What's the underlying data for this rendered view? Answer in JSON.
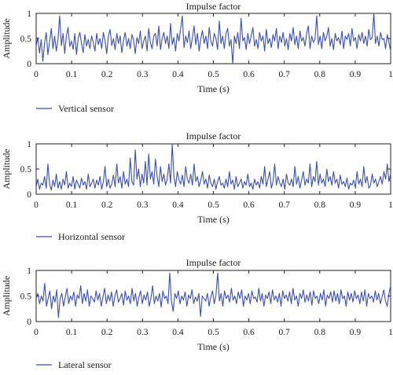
{
  "chart_data": [
    {
      "type": "line",
      "title": "Impulse factor",
      "xlabel": "Time (s)",
      "ylabel": "Amplitude",
      "xlim": [
        0,
        1
      ],
      "ylim": [
        0,
        1
      ],
      "x_ticks": [
        "0",
        "0.1",
        "0.2",
        "0.3",
        "0.4",
        "0.5",
        "0.6",
        "0.7",
        "0.8",
        "0.9",
        "1"
      ],
      "y_ticks": [
        "0",
        "0.5",
        "1"
      ],
      "legend_position": "bottom-left",
      "color": "#3a4fa8",
      "series": [
        {
          "name": "Vertical sensor",
          "x_start": 0,
          "x_end": 1,
          "values": [
            0.35,
            0.52,
            0.21,
            0.48,
            0.05,
            0.4,
            0.62,
            0.18,
            0.44,
            0.7,
            0.3,
            0.55,
            0.25,
            0.48,
            0.95,
            0.36,
            0.6,
            0.2,
            0.55,
            0.72,
            0.34,
            0.45,
            0.28,
            0.6,
            0.18,
            0.5,
            0.62,
            0.4,
            0.22,
            0.58,
            0.35,
            0.48,
            0.3,
            0.55,
            0.42,
            0.25,
            0.6,
            0.38,
            0.5,
            0.3,
            0.62,
            0.45,
            0.2,
            0.55,
            0.68,
            0.36,
            0.5,
            0.28,
            0.6,
            0.4,
            0.55,
            0.22,
            0.46,
            0.62,
            0.35,
            0.5,
            0.3,
            0.58,
            0.48,
            0.2,
            0.52,
            0.4,
            0.65,
            0.3,
            0.45,
            0.55,
            0.25,
            0.7,
            0.42,
            0.3,
            0.55,
            0.6,
            0.35,
            0.75,
            0.28,
            0.5,
            0.62,
            0.4,
            0.55,
            0.3,
            0.8,
            0.38,
            0.52,
            0.25,
            0.6,
            0.45,
            0.7,
            0.95,
            0.32,
            0.55,
            0.42,
            0.65,
            0.3,
            0.52,
            0.75,
            0.38,
            0.6,
            0.25,
            0.5,
            0.66,
            0.4,
            0.55,
            0.3,
            0.72,
            0.45,
            0.35,
            0.6,
            0.5,
            0.28,
            0.85,
            0.4,
            0.55,
            0.3,
            0.6,
            0.7,
            0.35,
            0.48,
            0.0,
            0.55,
            0.4,
            0.62,
            0.3,
            0.9,
            0.45,
            0.52,
            0.28,
            0.6,
            0.4,
            0.55,
            0.72,
            0.35,
            0.48,
            0.3,
            0.62,
            0.45,
            0.55,
            0.25,
            0.68,
            0.4,
            0.5,
            0.32,
            0.58,
            0.45,
            0.7,
            0.3,
            0.55,
            0.42,
            0.62,
            0.35,
            0.5,
            0.28,
            0.6,
            0.45,
            0.72,
            0.38,
            0.55,
            0.3,
            0.65,
            0.45,
            0.52,
            0.35,
            0.6,
            0.75,
            0.3,
            0.55,
            0.42,
            0.5,
            0.95,
            0.38,
            0.55,
            0.3,
            0.62,
            0.45,
            0.55,
            0.72,
            0.35,
            0.5,
            0.28,
            0.6,
            0.45,
            0.52,
            0.38,
            0.65,
            0.3,
            0.55,
            0.48,
            0.6,
            0.35,
            0.7,
            0.45,
            0.52,
            0.3,
            0.58,
            0.45,
            0.62,
            0.4,
            0.55,
            0.35,
            0.68,
            0.48,
            0.52,
            1.0,
            0.4,
            0.55,
            0.35,
            0.62,
            0.48,
            0.5,
            0.3,
            0.58,
            0.42,
            0.25
          ]
        }
      ]
    },
    {
      "type": "line",
      "title": "Impulse factor",
      "xlabel": "Time (s)",
      "ylabel": "Amplitude",
      "xlim": [
        0,
        1
      ],
      "ylim": [
        0,
        1
      ],
      "x_ticks": [
        "0",
        "0.1",
        "0.2",
        "0.3",
        "0.4",
        "0.5",
        "0.6",
        "0.7",
        "0.8",
        "0.9",
        "1"
      ],
      "y_ticks": [
        "0",
        "0.5",
        "1"
      ],
      "legend_position": "bottom-left",
      "color": "#3a4fa8",
      "series": [
        {
          "name": "Horizontal sensor",
          "x_start": 0,
          "x_end": 1,
          "values": [
            0.15,
            0.3,
            0.1,
            0.22,
            0.18,
            0.35,
            0.12,
            0.6,
            0.2,
            0.08,
            0.28,
            0.15,
            0.4,
            0.12,
            0.25,
            0.1,
            0.3,
            0.18,
            0.45,
            0.12,
            0.22,
            0.15,
            0.35,
            0.1,
            0.28,
            0.2,
            0.12,
            0.32,
            0.18,
            0.25,
            0.1,
            0.4,
            0.15,
            0.22,
            0.3,
            0.12,
            0.28,
            0.18,
            0.35,
            0.1,
            0.25,
            0.55,
            0.15,
            0.3,
            0.12,
            0.2,
            0.38,
            0.15,
            0.6,
            0.22,
            0.35,
            0.12,
            0.45,
            0.2,
            0.3,
            0.15,
            0.72,
            0.25,
            0.18,
            0.88,
            0.3,
            0.5,
            0.15,
            0.4,
            0.22,
            0.65,
            0.18,
            0.8,
            0.3,
            0.45,
            0.2,
            0.7,
            0.35,
            0.15,
            0.55,
            0.25,
            0.4,
            0.18,
            0.3,
            0.6,
            0.22,
            1.0,
            0.35,
            0.15,
            0.45,
            0.28,
            0.2,
            0.38,
            0.15,
            0.55,
            0.3,
            0.22,
            0.4,
            0.18,
            0.6,
            0.25,
            0.35,
            0.15,
            0.28,
            0.45,
            0.2,
            0.3,
            0.12,
            0.38,
            0.22,
            0.15,
            0.3,
            0.1,
            0.25,
            0.35,
            0.18,
            0.22,
            0.12,
            0.3,
            0.15,
            0.45,
            0.2,
            0.28,
            0.1,
            0.35,
            0.15,
            0.22,
            0.3,
            0.12,
            0.25,
            0.18,
            0.4,
            0.15,
            0.22,
            0.1,
            0.3,
            0.18,
            0.25,
            0.12,
            0.35,
            0.2,
            0.55,
            0.15,
            0.3,
            0.45,
            0.12,
            0.25,
            0.6,
            0.18,
            0.35,
            0.22,
            0.15,
            0.3,
            0.1,
            0.4,
            0.22,
            0.18,
            0.3,
            0.15,
            0.55,
            0.2,
            0.35,
            0.12,
            0.28,
            0.45,
            0.18,
            0.3,
            0.22,
            0.6,
            0.15,
            0.35,
            0.25,
            0.65,
            0.18,
            0.4,
            0.22,
            0.3,
            0.15,
            0.5,
            0.25,
            0.35,
            0.18,
            0.45,
            0.22,
            0.3,
            0.12,
            0.38,
            0.2,
            0.25,
            0.15,
            0.32,
            0.1,
            0.22,
            0.18,
            0.28,
            0.12,
            0.45,
            0.2,
            0.3,
            0.15,
            0.55,
            0.22,
            0.35,
            0.12,
            0.18,
            0.4,
            0.22,
            0.3,
            0.15,
            0.25,
            0.35,
            0.2,
            0.45,
            0.3,
            0.6,
            0.25,
            0.4
          ]
        }
      ]
    },
    {
      "type": "line",
      "title": "Impulse factor",
      "xlabel": "Time (s)",
      "ylabel": "Amplitude",
      "xlim": [
        0,
        1
      ],
      "ylim": [
        0,
        1
      ],
      "x_ticks": [
        "0",
        "0.1",
        "0.2",
        "0.3",
        "0.4",
        "0.5",
        "0.6",
        "0.7",
        "0.8",
        "0.9",
        "1"
      ],
      "y_ticks": [
        "0",
        "0.5",
        "1"
      ],
      "legend_position": "bottom-left",
      "color": "#3a4fa8",
      "series": [
        {
          "name": "Lateral sensor",
          "x_start": 0,
          "x_end": 1,
          "values": [
            0.45,
            0.55,
            0.35,
            0.5,
            0.4,
            0.75,
            0.3,
            0.45,
            0.6,
            0.25,
            0.5,
            0.38,
            0.62,
            0.08,
            0.45,
            0.55,
            0.3,
            0.48,
            0.65,
            0.35,
            0.5,
            0.42,
            0.58,
            0.3,
            0.52,
            0.45,
            0.7,
            0.35,
            0.55,
            0.4,
            0.62,
            0.3,
            0.5,
            0.45,
            0.38,
            0.6,
            0.42,
            0.55,
            0.3,
            0.48,
            0.65,
            0.35,
            0.52,
            0.4,
            0.58,
            0.3,
            0.5,
            0.62,
            0.38,
            0.45,
            0.55,
            0.32,
            0.6,
            0.42,
            0.5,
            0.35,
            0.65,
            0.4,
            0.55,
            0.3,
            0.48,
            0.6,
            0.35,
            0.52,
            0.42,
            0.58,
            0.3,
            0.45,
            0.7,
            0.35,
            0.5,
            0.4,
            0.55,
            0.28,
            0.6,
            0.45,
            0.5,
            0.35,
            0.95,
            0.4,
            0.2,
            0.55,
            0.45,
            0.6,
            0.35,
            0.5,
            0.42,
            0.58,
            0.3,
            0.52,
            0.45,
            0.62,
            0.35,
            0.48,
            0.4,
            0.55,
            0.1,
            0.5,
            0.45,
            0.4,
            0.55,
            0.3,
            0.48,
            0.6,
            0.35,
            0.52,
            0.95,
            0.4,
            0.55,
            0.3,
            0.6,
            0.45,
            0.52,
            0.38,
            0.65,
            0.42,
            0.5,
            0.35,
            0.58,
            0.45,
            0.62,
            0.3,
            0.5,
            0.42,
            0.55,
            0.35,
            0.6,
            0.45,
            0.48,
            0.38,
            0.65,
            0.4,
            0.55,
            0.3,
            0.52,
            0.45,
            0.58,
            0.35,
            0.62,
            0.42,
            0.5,
            0.38,
            0.55,
            0.3,
            0.6,
            0.45,
            0.52,
            0.4,
            0.58,
            0.35,
            0.65,
            0.42,
            0.5,
            0.3,
            0.55,
            0.45,
            0.62,
            0.38,
            0.52,
            0.4,
            0.58,
            0.32,
            0.6,
            0.45,
            0.5,
            0.35,
            0.55,
            0.42,
            0.62,
            0.3,
            0.52,
            0.45,
            0.58,
            0.38,
            0.6,
            0.4,
            0.55,
            0.35,
            0.62,
            0.45,
            0.5,
            0.3,
            0.58,
            0.42,
            0.55,
            0.38,
            0.6,
            0.45,
            0.52,
            0.35,
            0.58,
            0.4,
            0.62,
            0.3,
            0.55,
            0.45,
            0.5,
            0.38,
            0.6,
            0.42,
            0.55,
            0.35,
            0.48,
            0.62,
            0.4,
            0.3,
            0.55,
            0.7
          ]
        }
      ]
    }
  ]
}
